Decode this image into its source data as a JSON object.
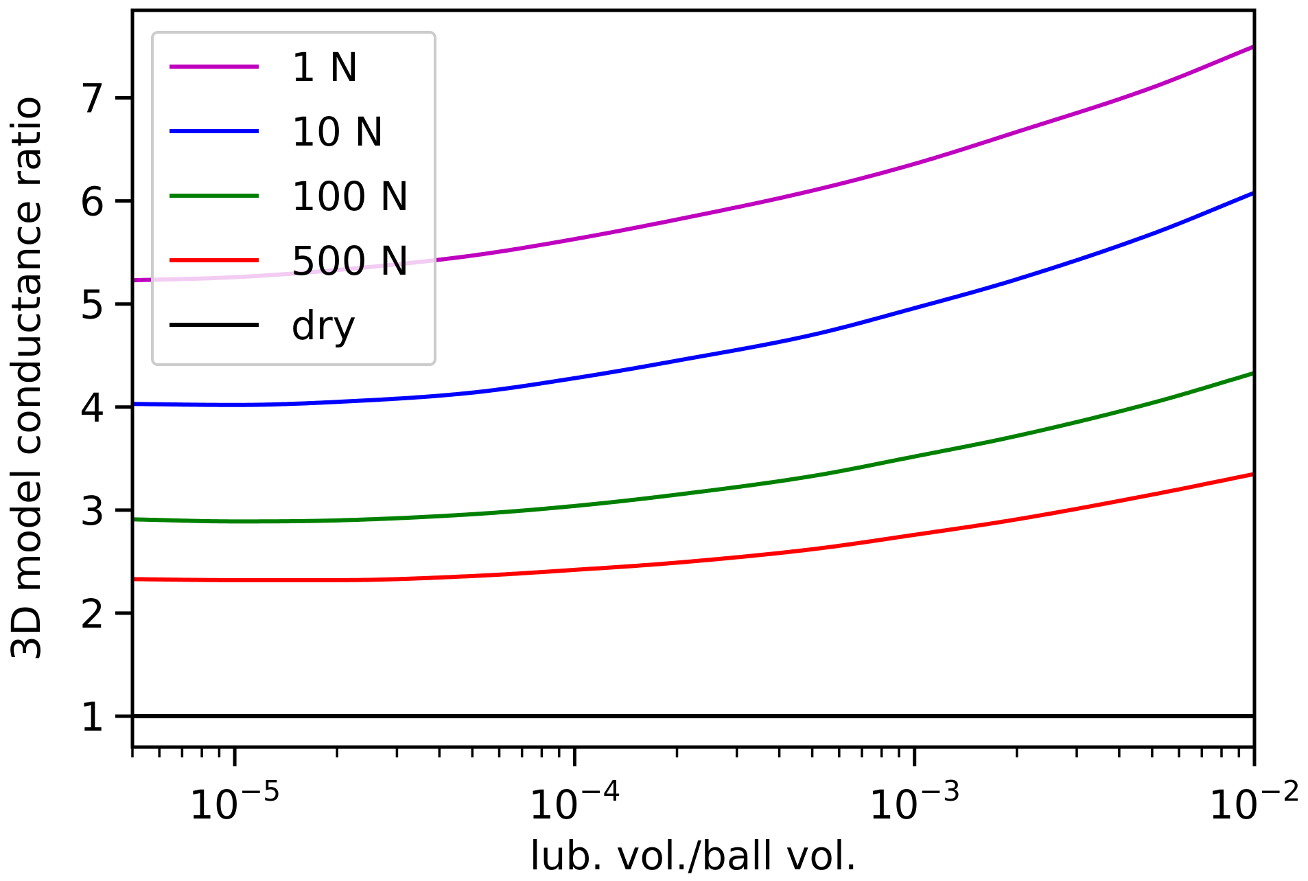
{
  "chart_data": {
    "type": "line",
    "title": "",
    "xlabel": "lub. vol./ball vol.",
    "ylabel": "3D model conductance ratio",
    "xscale": "log",
    "xlim": [
      5e-06,
      0.01
    ],
    "ylim": [
      0.7,
      7.85
    ],
    "grid": false,
    "legend_position": "top-left",
    "x_ticks": [
      {
        "value": 1e-05,
        "base": "10",
        "exponent": "−5"
      },
      {
        "value": 0.0001,
        "base": "10",
        "exponent": "−4"
      },
      {
        "value": 0.001,
        "base": "10",
        "exponent": "−3"
      },
      {
        "value": 0.01,
        "base": "10",
        "exponent": "−2"
      }
    ],
    "y_ticks": [
      {
        "value": 1,
        "label": "1"
      },
      {
        "value": 2,
        "label": "2"
      },
      {
        "value": 3,
        "label": "3"
      },
      {
        "value": 4,
        "label": "4"
      },
      {
        "value": 5,
        "label": "5"
      },
      {
        "value": 6,
        "label": "6"
      },
      {
        "value": 7,
        "label": "7"
      }
    ],
    "x": [
      5e-06,
      1e-05,
      2e-05,
      5e-05,
      0.0001,
      0.0002,
      0.0005,
      0.001,
      0.002,
      0.005,
      0.01
    ],
    "series": [
      {
        "name": "1 N",
        "color": "#bf00bf",
        "values": [
          5.23,
          5.26,
          5.33,
          5.47,
          5.63,
          5.82,
          6.1,
          6.36,
          6.67,
          7.1,
          7.5
        ]
      },
      {
        "name": "10 N",
        "color": "#0000ff",
        "values": [
          4.03,
          4.02,
          4.05,
          4.14,
          4.28,
          4.45,
          4.7,
          4.96,
          5.24,
          5.68,
          6.08
        ]
      },
      {
        "name": "100 N",
        "color": "#008000",
        "values": [
          2.91,
          2.89,
          2.9,
          2.96,
          3.04,
          3.15,
          3.33,
          3.52,
          3.72,
          4.04,
          4.33
        ]
      },
      {
        "name": "500 N",
        "color": "#ff0000",
        "values": [
          2.33,
          2.32,
          2.32,
          2.36,
          2.42,
          2.49,
          2.62,
          2.76,
          2.91,
          3.15,
          3.35
        ]
      },
      {
        "name": "dry",
        "color": "#000000",
        "values": [
          1,
          1,
          1,
          1,
          1,
          1,
          1,
          1,
          1,
          1,
          1
        ]
      }
    ]
  }
}
